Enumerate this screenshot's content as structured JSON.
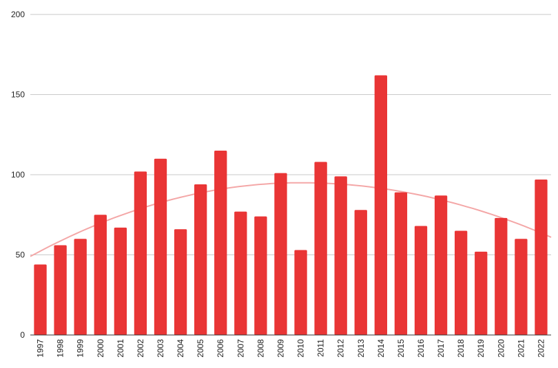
{
  "chart_data": {
    "type": "bar",
    "categories": [
      "1997",
      "1998",
      "1999",
      "2000",
      "2001",
      "2002",
      "2003",
      "2004",
      "2005",
      "2006",
      "2007",
      "2008",
      "2009",
      "2010",
      "2011",
      "2012",
      "2013",
      "2014",
      "2015",
      "2016",
      "2017",
      "2018",
      "2019",
      "2020",
      "2021",
      "2022"
    ],
    "series": [
      {
        "values": [
          44,
          56,
          60,
          75,
          67,
          102,
          110,
          66,
          94,
          115,
          77,
          74,
          101,
          53,
          108,
          99,
          78,
          162,
          89,
          68,
          87,
          65,
          52,
          73,
          60,
          97
        ]
      }
    ],
    "trendline": {
      "type": "polynomial",
      "start_value": 49,
      "peak_year": "2010",
      "peak_value": 95,
      "end_value": 61,
      "color": "#f4a7a7"
    },
    "title": "",
    "xlabel": "",
    "ylabel": "",
    "ylim": [
      0,
      200
    ],
    "yticks": [
      0,
      50,
      100,
      150,
      200
    ],
    "grid": true,
    "legend": "none",
    "bar_color": "#e93535"
  }
}
